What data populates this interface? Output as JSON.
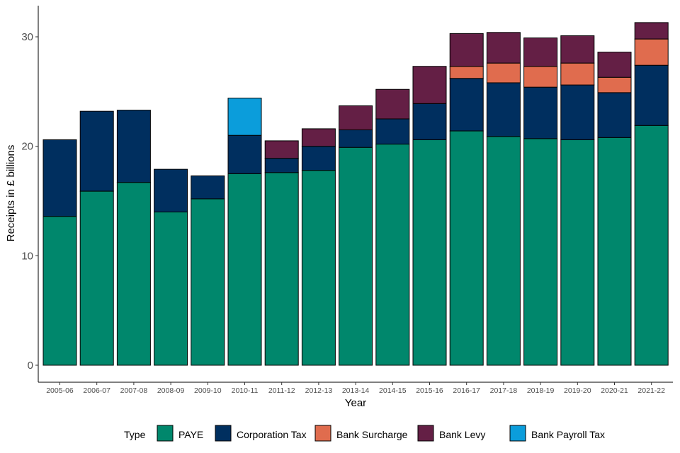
{
  "chart_data": {
    "type": "bar",
    "stacked": true,
    "title": "",
    "xlabel": "Year",
    "ylabel": "Receipts in £ billions",
    "ylim": [
      0,
      33
    ],
    "yticks": [
      0,
      10,
      20,
      30
    ],
    "grid": false,
    "legend_title": "Type",
    "legend_position": "bottom",
    "categories": [
      "2005-06",
      "2006-07",
      "2007-08",
      "2008-09",
      "2009-10",
      "2010-11",
      "2011-12",
      "2012-13",
      "2013-14",
      "2014-15",
      "2015-16",
      "2016-17",
      "2017-18",
      "2018-19",
      "2019-20",
      "2020-21",
      "2021-22"
    ],
    "series": [
      {
        "name": "PAYE",
        "color": "#00876c",
        "values": [
          13.6,
          15.9,
          16.7,
          14.0,
          15.2,
          17.5,
          17.6,
          17.8,
          19.9,
          20.2,
          20.6,
          21.4,
          20.9,
          20.7,
          20.6,
          20.8,
          21.9
        ]
      },
      {
        "name": "Corporation Tax",
        "color": "#002f5f",
        "values": [
          7.0,
          7.3,
          6.6,
          3.9,
          2.1,
          3.5,
          1.3,
          2.2,
          1.6,
          2.3,
          3.3,
          4.8,
          4.9,
          4.7,
          5.0,
          4.1,
          5.5
        ]
      },
      {
        "name": "Bank Surcharge",
        "color": "#e06c4e",
        "values": [
          0,
          0,
          0,
          0,
          0,
          0,
          0,
          0,
          0,
          0,
          0,
          1.1,
          1.8,
          1.9,
          2.0,
          1.4,
          2.4
        ]
      },
      {
        "name": "Bank Levy",
        "color": "#641f45",
        "values": [
          0,
          0,
          0,
          0,
          0,
          0,
          1.6,
          1.6,
          2.2,
          2.7,
          3.4,
          3.0,
          2.8,
          2.6,
          2.5,
          2.3,
          1.5
        ]
      },
      {
        "name": "Bank Payroll Tax",
        "color": "#0b9ddb",
        "values": [
          0,
          0,
          0,
          0,
          0,
          3.4,
          0,
          0,
          0,
          0,
          0,
          0,
          0,
          0,
          0,
          0,
          0
        ]
      }
    ]
  }
}
